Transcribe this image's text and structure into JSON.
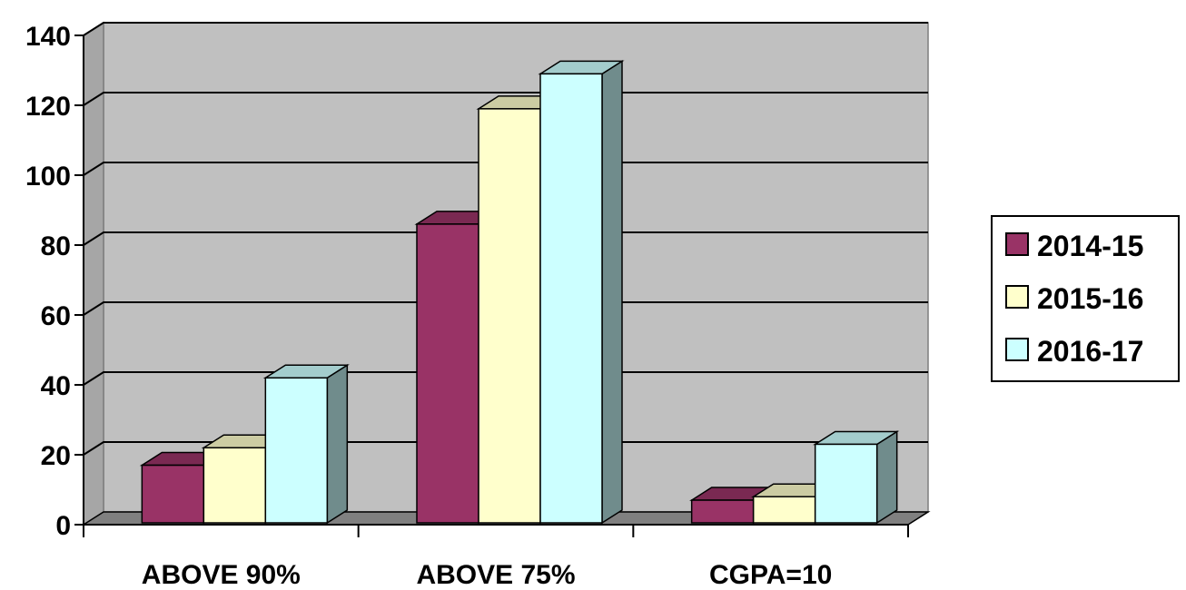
{
  "chart_data": {
    "type": "bar",
    "categories": [
      "ABOVE 90%",
      "ABOVE 75%",
      "CGPA=10"
    ],
    "series": [
      {
        "name": "2014-15",
        "values": [
          17,
          86,
          7
        ],
        "color": "#993366"
      },
      {
        "name": "2015-16",
        "values": [
          22,
          119,
          8
        ],
        "color": "#FFFFCC"
      },
      {
        "name": "2016-17",
        "values": [
          42,
          129,
          23
        ],
        "color": "#CCFFFF"
      }
    ],
    "ylim": [
      0,
      140
    ],
    "yticks": [
      0,
      20,
      40,
      60,
      80,
      100,
      120,
      140
    ],
    "grid": true,
    "legend": "right",
    "background_color": "#C0C0C0",
    "floor_color": "#808080"
  }
}
